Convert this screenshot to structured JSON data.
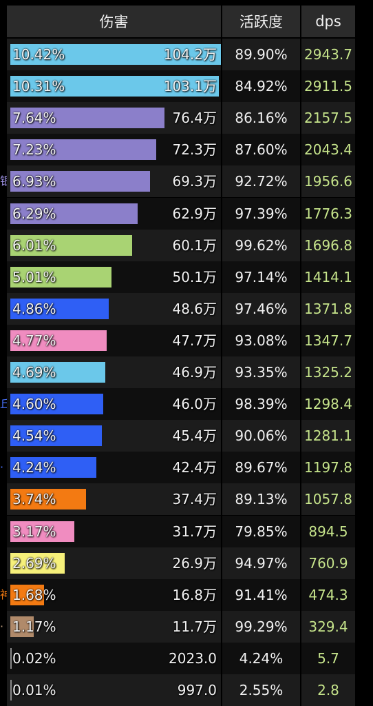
{
  "header": {
    "damage": "伤害",
    "activity": "活跃度",
    "dps": "dps"
  },
  "rows": [
    {
      "pct": "10.42%",
      "fill": 1.0,
      "amount": "104.2万",
      "activity": "89.90%",
      "dps": "2943.7",
      "color": "#6bc8ea",
      "edge": ""
    },
    {
      "pct": "10.31%",
      "fill": 0.99,
      "amount": "103.1万",
      "activity": "84.92%",
      "dps": "2911.5",
      "color": "#6bc8ea",
      "edge": ""
    },
    {
      "pct": "7.64%",
      "fill": 0.733,
      "amount": "76.4万",
      "activity": "86.16%",
      "dps": "2157.5",
      "color": "#8b7fca",
      "edge": ""
    },
    {
      "pct": "7.23%",
      "fill": 0.694,
      "amount": "72.3万",
      "activity": "87.60%",
      "dps": "2043.4",
      "color": "#8b7fca",
      "edge": ""
    },
    {
      "pct": "6.93%",
      "fill": 0.665,
      "amount": "69.3万",
      "activity": "92.72%",
      "dps": "1956.6",
      "color": "#8b7fca",
      "edge": "银",
      "edgeColor": "#9b8fe0"
    },
    {
      "pct": "6.29%",
      "fill": 0.604,
      "amount": "62.9万",
      "activity": "97.39%",
      "dps": "1776.3",
      "color": "#8b7fca",
      "edge": ""
    },
    {
      "pct": "6.01%",
      "fill": 0.577,
      "amount": "60.1万",
      "activity": "99.62%",
      "dps": "1696.8",
      "color": "#a9d373",
      "edge": ""
    },
    {
      "pct": "5.01%",
      "fill": 0.481,
      "amount": "50.1万",
      "activity": "97.14%",
      "dps": "1414.1",
      "color": "#a9d373",
      "edge": ""
    },
    {
      "pct": "4.86%",
      "fill": 0.466,
      "amount": "48.6万",
      "activity": "97.46%",
      "dps": "1371.8",
      "color": "#2f5ff5",
      "edge": ""
    },
    {
      "pct": "4.77%",
      "fill": 0.458,
      "amount": "47.7万",
      "activity": "93.08%",
      "dps": "1347.7",
      "color": "#f08cc0",
      "edge": ""
    },
    {
      "pct": "4.69%",
      "fill": 0.45,
      "amount": "46.9万",
      "activity": "93.35%",
      "dps": "1325.2",
      "color": "#6bc8ea",
      "edge": ""
    },
    {
      "pct": "4.60%",
      "fill": 0.441,
      "amount": "46.0万",
      "activity": "98.39%",
      "dps": "1298.4",
      "color": "#2f5ff5",
      "edge": "丘",
      "edgeColor": "#4a74ff"
    },
    {
      "pct": "4.54%",
      "fill": 0.436,
      "amount": "45.4万",
      "activity": "90.06%",
      "dps": "1281.1",
      "color": "#2f5ff5",
      "edge": ""
    },
    {
      "pct": "4.24%",
      "fill": 0.407,
      "amount": "42.4万",
      "activity": "89.67%",
      "dps": "1197.8",
      "color": "#2f5ff5",
      "edge": "·",
      "edgeColor": "#4a74ff"
    },
    {
      "pct": "3.74%",
      "fill": 0.359,
      "amount": "37.4万",
      "activity": "89.13%",
      "dps": "1057.8",
      "color": "#f37a12",
      "edge": ""
    },
    {
      "pct": "3.17%",
      "fill": 0.304,
      "amount": "31.7万",
      "activity": "79.85%",
      "dps": "894.5",
      "color": "#f08cc0",
      "edge": ""
    },
    {
      "pct": "2.69%",
      "fill": 0.258,
      "amount": "26.9万",
      "activity": "94.97%",
      "dps": "760.9",
      "color": "#f6f07a",
      "edge": ""
    },
    {
      "pct": "1.68%",
      "fill": 0.161,
      "amount": "16.8万",
      "activity": "91.41%",
      "dps": "474.3",
      "color": "#f37a12",
      "edge": "神",
      "edgeColor": "#f37a12"
    },
    {
      "pct": "1.17%",
      "fill": 0.112,
      "amount": "11.7万",
      "activity": "99.29%",
      "dps": "329.4",
      "color": "#b08a6a",
      "edge": "·",
      "edgeColor": "#c0a080"
    },
    {
      "pct": "0.02%",
      "fill": 0.003,
      "amount": "2023.0",
      "activity": "4.24%",
      "dps": "5.7",
      "color": "#8a8a8a",
      "edge": ""
    },
    {
      "pct": "0.01%",
      "fill": 0.002,
      "amount": "997.0",
      "activity": "2.55%",
      "dps": "2.8",
      "color": "#8a8a8a",
      "edge": ""
    }
  ]
}
